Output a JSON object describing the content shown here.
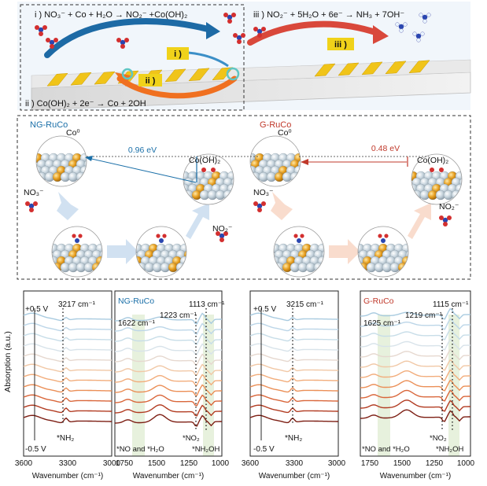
{
  "top": {
    "eq_i": "i ) NO₃⁻ + Co + H₂O → NO₂⁻ +Co(OH)₂",
    "eq_ii": "ii ) Co(OH)₂ + 2e⁻ → Co + 2OH",
    "eq_iii": "iii ) NO₂⁻ + 5H₂O + 6e⁻ → NH₃ + 7OH⁻",
    "tag_i": "i )",
    "tag_ii": "ii )",
    "tag_iii": "iii )"
  },
  "middle": {
    "left_title": "NG-RuCo",
    "right_title": "G-RuCo",
    "co0_left": "Co⁰",
    "co0_right": "Co⁰",
    "cooh_left": "Co(OH)₂",
    "cooh_right": "Co(OH)₂",
    "gap_left": "0.96 eV",
    "gap_right": "0.48 eV",
    "no3_left": "NO₃⁻",
    "no3_right": "NO₃⁻",
    "no2_left": "NO₂⁻",
    "no2_right": "NO₂⁻"
  },
  "colors": {
    "blue": "#1a6fa8",
    "red": "#c0392b",
    "gold": "#e5b800",
    "orange": "#f07020"
  },
  "spectra": {
    "ylabel": "Absorption (a.u.)",
    "xlabel": "Wavenumber (cm⁻¹)",
    "p1": {
      "xticks": [
        "3600",
        "3300",
        "3000"
      ],
      "plus": "+0.5 V",
      "minus": "-0.5 V",
      "peak": "3217 cm⁻¹",
      "assign": "*NH₂"
    },
    "p2": {
      "title": "NG-RuCo",
      "xticks": [
        "1750",
        "1500",
        "1250",
        "1000"
      ],
      "peaks": [
        "1622 cm⁻¹",
        "1223 cm⁻¹",
        "1113 cm⁻¹"
      ],
      "assign": [
        "*NO and *H₂O",
        "*NO₂",
        "*NH₂OH"
      ]
    },
    "p3": {
      "xticks": [
        "3600",
        "3300",
        "3000"
      ],
      "plus": "+0.5 V",
      "minus": "-0.5 V",
      "peak": "3215 cm⁻¹",
      "assign": "*NH₂"
    },
    "p4": {
      "title": "G-RuCo",
      "xticks": [
        "1750",
        "1500",
        "1250",
        "1000"
      ],
      "peaks": [
        "1625 cm⁻¹",
        "1219 cm⁻¹",
        "1115 cm⁻¹"
      ],
      "assign": [
        "*NO and *H₂O",
        "*NO₂",
        "*NH₂OH"
      ]
    },
    "palette": [
      "#a9cbe0",
      "#bcd6e8",
      "#c7dde8",
      "#d8e3ea",
      "#e6d8cf",
      "#f1c8a6",
      "#f2ad7c",
      "#eb8f57",
      "#d9663a",
      "#b23c22",
      "#7d1f14"
    ]
  }
}
